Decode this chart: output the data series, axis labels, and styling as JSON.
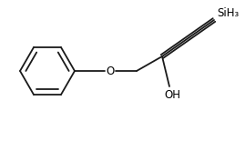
{
  "background_color": "#ffffff",
  "line_color": "#1a1a1a",
  "line_width": 1.3,
  "text_color": "#000000",
  "SiH3_label": "SiH₃",
  "O_label": "O",
  "OH_label": "OH",
  "font_size_atom": 8.5,
  "font_size_SiH3": 8.5,
  "figsize": [
    2.69,
    1.55
  ],
  "dpi": 100
}
